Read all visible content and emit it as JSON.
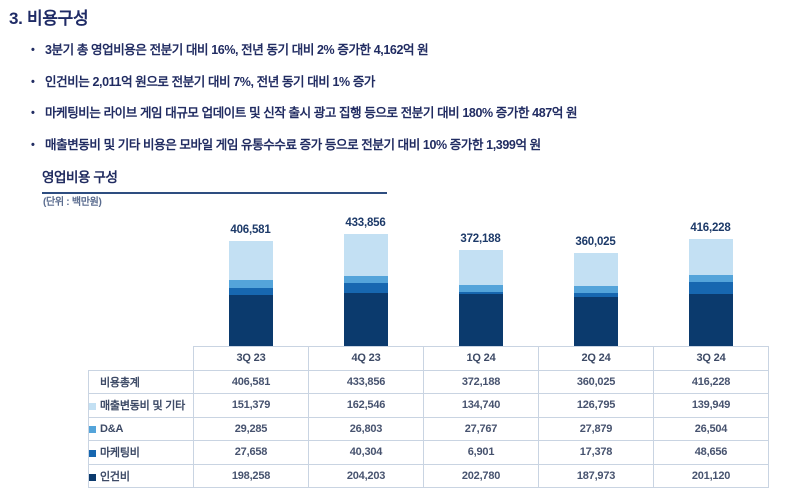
{
  "page": {
    "title": "3. 비용구성"
  },
  "bullets": [
    "3분기 총 영업비용은 전분기 대비 16%, 전년 동기 대비 2% 증가한 4,162억 원",
    "인건비는 2,011억 원으로 전분기 대비 7%, 전년 동기 대비 1% 증가",
    "마케팅비는 라이브 게임 대규모 업데이트 및 신작 출시 광고 집행 등으로 전분기 대비 180% 증가한 487억 원",
    "매출변동비 및 기타 비용은 모바일 게임 유통수수료 증가 등으로 전분기 대비 10% 증가한 1,399억 원"
  ],
  "section": {
    "title": "영업비용 구성",
    "unit": "(단위 : 백만원)"
  },
  "chart_data": {
    "type": "bar",
    "stacked": true,
    "title": "영업비용 구성",
    "ylabel": "백만원",
    "legend_position": "table-row-labels",
    "grid": false,
    "categories": [
      "3Q 23",
      "4Q 23",
      "1Q 24",
      "2Q 24",
      "3Q 24"
    ],
    "totals": [
      406581,
      433856,
      372188,
      360025,
      416228
    ],
    "total_labels": [
      "406,581",
      "433,856",
      "372,188",
      "360,025",
      "416,228"
    ],
    "series": [
      {
        "name": "인건비",
        "color": "#0b3a6d",
        "values": [
          198258,
          204203,
          202780,
          187973,
          201120
        ]
      },
      {
        "name": "마케팅비",
        "color": "#1767b0",
        "values": [
          27658,
          40304,
          6901,
          17378,
          48656
        ]
      },
      {
        "name": "D&A",
        "color": "#54a4da",
        "values": [
          29285,
          26803,
          27767,
          27879,
          26504
        ]
      },
      {
        "name": "매출변동비 및 기타",
        "color": "#c3e0f3",
        "values": [
          151379,
          162546,
          134740,
          126795,
          139949
        ]
      }
    ]
  },
  "table": {
    "col_headers": [
      "3Q 23",
      "4Q 23",
      "1Q 24",
      "2Q 24",
      "3Q 24"
    ],
    "rows": [
      {
        "label": "비용총계",
        "swatch": null,
        "values": [
          "406,581",
          "433,856",
          "372,188",
          "360,025",
          "416,228"
        ]
      },
      {
        "label": "매출변동비 및 기타",
        "swatch": "#c3e0f3",
        "values": [
          "151,379",
          "162,546",
          "134,740",
          "126,795",
          "139,949"
        ]
      },
      {
        "label": "D&A",
        "swatch": "#54a4da",
        "values": [
          "29,285",
          "26,803",
          "27,767",
          "27,879",
          "26,504"
        ]
      },
      {
        "label": "마케팅비",
        "swatch": "#1767b0",
        "values": [
          "27,658",
          "40,304",
          "6,901",
          "17,378",
          "48,656"
        ]
      },
      {
        "label": "인건비",
        "swatch": "#0b3a6d",
        "values": [
          "198,258",
          "204,203",
          "202,780",
          "187,973",
          "201,120"
        ]
      }
    ]
  },
  "colors": {
    "heading_text": "#1f2b66",
    "body_text": "#212c62",
    "section_underline": "#2e4d80",
    "unit_text": "#5a6c8f",
    "bar_label_text": "#1d3a69",
    "table_border": "#c9d4e2",
    "table_text": "#47536f"
  }
}
